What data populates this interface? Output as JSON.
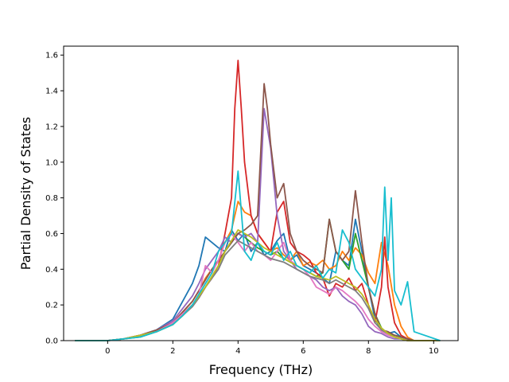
{
  "chart_data": {
    "type": "line",
    "title": "",
    "xlabel": "Frequency (THz)",
    "ylabel": "Partial Density of States",
    "xlim": [
      -1.35,
      10.75
    ],
    "ylim": [
      0.0,
      1.65
    ],
    "xticks": [
      0,
      2,
      4,
      6,
      8,
      10
    ],
    "yticks": [
      0.0,
      0.2,
      0.4,
      0.6,
      0.8,
      1.0,
      1.2,
      1.4,
      1.6
    ],
    "xtick_labels": [
      "0",
      "2",
      "4",
      "6",
      "8",
      "10"
    ],
    "ytick_labels": [
      "0.0",
      "0.2",
      "0.4",
      "0.6",
      "0.8",
      "1.0",
      "1.2",
      "1.4",
      "1.6"
    ],
    "grid": false,
    "legend": "none",
    "series": [
      {
        "color": "#1f77b4",
        "x": [
          -1.0,
          0.0,
          0.5,
          1.0,
          1.5,
          2.0,
          2.3,
          2.6,
          2.8,
          3.0,
          3.2,
          3.4,
          3.6,
          3.8,
          4.0,
          4.2,
          4.4,
          4.6,
          4.8,
          5.0,
          5.2,
          5.4,
          5.6,
          5.8,
          6.0,
          6.2,
          6.4,
          6.6,
          6.8,
          7.0,
          7.2,
          7.4,
          7.6,
          7.8,
          8.0,
          8.2,
          8.4,
          8.6,
          8.8,
          9.0,
          9.2,
          9.4,
          10.2
        ],
        "y": [
          0.0,
          0.0,
          0.01,
          0.03,
          0.06,
          0.12,
          0.22,
          0.32,
          0.42,
          0.58,
          0.55,
          0.52,
          0.5,
          0.62,
          0.56,
          0.6,
          0.5,
          0.55,
          0.48,
          0.5,
          0.56,
          0.6,
          0.45,
          0.48,
          0.42,
          0.4,
          0.38,
          0.35,
          0.32,
          0.5,
          0.45,
          0.42,
          0.68,
          0.5,
          0.3,
          0.12,
          0.06,
          0.04,
          0.05,
          0.02,
          0.01,
          0.0,
          0.0
        ]
      },
      {
        "color": "#ff7f0e",
        "x": [
          -1.0,
          0.0,
          0.5,
          1.0,
          1.5,
          2.0,
          2.3,
          2.6,
          2.8,
          3.0,
          3.2,
          3.4,
          3.6,
          3.8,
          4.0,
          4.2,
          4.4,
          4.6,
          4.8,
          5.0,
          5.2,
          5.4,
          5.6,
          5.8,
          6.0,
          6.2,
          6.4,
          6.6,
          6.8,
          7.0,
          7.2,
          7.4,
          7.6,
          7.8,
          8.0,
          8.2,
          8.4,
          8.6,
          8.8,
          9.0,
          9.2,
          9.4,
          10.2
        ],
        "y": [
          0.0,
          0.0,
          0.01,
          0.03,
          0.05,
          0.1,
          0.16,
          0.22,
          0.28,
          0.35,
          0.4,
          0.45,
          0.55,
          0.62,
          0.78,
          0.72,
          0.7,
          0.6,
          0.55,
          0.5,
          0.52,
          0.48,
          0.45,
          0.5,
          0.42,
          0.44,
          0.42,
          0.45,
          0.4,
          0.42,
          0.5,
          0.45,
          0.52,
          0.48,
          0.38,
          0.32,
          0.55,
          0.42,
          0.2,
          0.08,
          0.02,
          0.0,
          0.0
        ]
      },
      {
        "color": "#2ca02c",
        "x": [
          -1.0,
          0.0,
          0.5,
          1.0,
          1.5,
          2.0,
          2.3,
          2.6,
          2.8,
          3.0,
          3.2,
          3.4,
          3.6,
          3.8,
          4.0,
          4.2,
          4.4,
          4.6,
          4.8,
          5.0,
          5.2,
          5.4,
          5.6,
          5.8,
          6.0,
          6.2,
          6.4,
          6.6,
          6.8,
          7.0,
          7.2,
          7.4,
          7.6,
          7.8,
          8.0,
          8.2,
          8.4,
          8.6,
          8.8,
          9.0,
          9.2,
          9.4,
          10.2
        ],
        "y": [
          0.0,
          0.0,
          0.01,
          0.02,
          0.05,
          0.09,
          0.14,
          0.2,
          0.25,
          0.3,
          0.36,
          0.42,
          0.5,
          0.55,
          0.6,
          0.58,
          0.55,
          0.52,
          0.5,
          0.48,
          0.5,
          0.46,
          0.44,
          0.42,
          0.4,
          0.38,
          0.36,
          0.38,
          0.68,
          0.5,
          0.45,
          0.4,
          0.6,
          0.45,
          0.3,
          0.15,
          0.07,
          0.04,
          0.03,
          0.02,
          0.01,
          0.0,
          0.0
        ]
      },
      {
        "color": "#d62728",
        "x": [
          -1.0,
          0.0,
          0.5,
          1.0,
          1.5,
          2.0,
          2.3,
          2.6,
          2.8,
          3.0,
          3.2,
          3.4,
          3.6,
          3.8,
          3.9,
          4.0,
          4.1,
          4.2,
          4.4,
          4.6,
          4.8,
          5.0,
          5.2,
          5.4,
          5.6,
          5.8,
          6.0,
          6.2,
          6.4,
          6.6,
          6.8,
          7.0,
          7.2,
          7.4,
          7.6,
          7.8,
          8.0,
          8.2,
          8.4,
          8.5,
          8.6,
          8.8,
          9.0,
          9.2,
          9.4,
          10.2
        ],
        "y": [
          0.0,
          0.0,
          0.01,
          0.03,
          0.05,
          0.1,
          0.15,
          0.2,
          0.24,
          0.3,
          0.35,
          0.42,
          0.6,
          0.8,
          1.3,
          1.57,
          1.3,
          1.0,
          0.7,
          0.6,
          0.55,
          0.5,
          0.72,
          0.78,
          0.55,
          0.5,
          0.48,
          0.45,
          0.38,
          0.35,
          0.25,
          0.32,
          0.3,
          0.35,
          0.28,
          0.32,
          0.2,
          0.1,
          0.3,
          0.58,
          0.3,
          0.1,
          0.03,
          0.01,
          0.0,
          0.0
        ]
      },
      {
        "color": "#9467bd",
        "x": [
          -1.0,
          0.0,
          0.5,
          1.0,
          1.5,
          2.0,
          2.3,
          2.6,
          2.8,
          3.0,
          3.2,
          3.4,
          3.6,
          3.8,
          4.0,
          4.2,
          4.4,
          4.6,
          4.8,
          5.0,
          5.2,
          5.4,
          5.6,
          5.8,
          6.0,
          6.2,
          6.4,
          6.6,
          6.8,
          7.0,
          7.2,
          7.4,
          7.6,
          7.8,
          8.0,
          8.2,
          8.4,
          8.6,
          8.8,
          9.0,
          9.2,
          9.4,
          10.2
        ],
        "y": [
          0.0,
          0.0,
          0.01,
          0.03,
          0.06,
          0.11,
          0.18,
          0.25,
          0.32,
          0.4,
          0.45,
          0.5,
          0.58,
          0.55,
          0.6,
          0.58,
          0.6,
          0.55,
          1.3,
          1.08,
          0.7,
          0.5,
          0.45,
          0.4,
          0.38,
          0.36,
          0.34,
          0.3,
          0.28,
          0.3,
          0.25,
          0.22,
          0.2,
          0.15,
          0.08,
          0.05,
          0.04,
          0.02,
          0.01,
          0.01,
          0.0,
          0.0,
          0.0
        ]
      },
      {
        "color": "#8c564b",
        "x": [
          -1.0,
          0.0,
          0.5,
          1.0,
          1.5,
          2.0,
          2.3,
          2.6,
          2.8,
          3.0,
          3.2,
          3.4,
          3.6,
          3.8,
          4.0,
          4.2,
          4.4,
          4.6,
          4.8,
          4.9,
          5.0,
          5.1,
          5.2,
          5.4,
          5.6,
          5.8,
          6.0,
          6.2,
          6.4,
          6.6,
          6.8,
          7.0,
          7.2,
          7.4,
          7.6,
          7.8,
          8.0,
          8.2,
          8.4,
          8.6,
          8.8,
          9.0,
          9.2,
          9.4,
          10.2
        ],
        "y": [
          0.0,
          0.0,
          0.01,
          0.03,
          0.06,
          0.1,
          0.16,
          0.22,
          0.28,
          0.34,
          0.4,
          0.45,
          0.5,
          0.55,
          0.6,
          0.62,
          0.65,
          0.7,
          1.44,
          1.3,
          1.1,
          0.95,
          0.8,
          0.88,
          0.6,
          0.5,
          0.45,
          0.42,
          0.4,
          0.38,
          0.68,
          0.5,
          0.45,
          0.5,
          0.84,
          0.55,
          0.3,
          0.15,
          0.06,
          0.05,
          0.03,
          0.02,
          0.01,
          0.0,
          0.0
        ]
      },
      {
        "color": "#e377c2",
        "x": [
          -1.0,
          0.0,
          0.5,
          1.0,
          1.5,
          2.0,
          2.3,
          2.6,
          2.8,
          3.0,
          3.2,
          3.4,
          3.6,
          3.8,
          4.0,
          4.2,
          4.4,
          4.6,
          4.8,
          5.0,
          5.2,
          5.4,
          5.6,
          5.8,
          6.0,
          6.2,
          6.4,
          6.6,
          6.8,
          7.0,
          7.2,
          7.4,
          7.6,
          7.8,
          8.0,
          8.2,
          8.4,
          8.6,
          8.8,
          9.0,
          9.2,
          9.4,
          10.2
        ],
        "y": [
          0.0,
          0.0,
          0.01,
          0.03,
          0.05,
          0.1,
          0.15,
          0.2,
          0.26,
          0.42,
          0.38,
          0.45,
          0.55,
          0.6,
          0.55,
          0.5,
          0.55,
          0.5,
          0.48,
          0.45,
          0.5,
          0.55,
          0.45,
          0.42,
          0.4,
          0.36,
          0.3,
          0.28,
          0.26,
          0.3,
          0.28,
          0.25,
          0.22,
          0.18,
          0.12,
          0.08,
          0.05,
          0.03,
          0.02,
          0.01,
          0.0,
          0.0,
          0.0
        ]
      },
      {
        "color": "#7f7f7f",
        "x": [
          -1.0,
          0.0,
          0.5,
          1.0,
          1.5,
          2.0,
          2.3,
          2.6,
          2.8,
          3.0,
          3.2,
          3.4,
          3.6,
          3.8,
          4.0,
          4.2,
          4.4,
          4.6,
          4.8,
          5.0,
          5.2,
          5.4,
          5.6,
          5.8,
          6.0,
          6.2,
          6.4,
          6.6,
          6.8,
          7.0,
          7.2,
          7.4,
          7.6,
          7.8,
          8.0,
          8.2,
          8.4,
          8.6,
          8.8,
          9.0,
          9.2,
          9.4,
          10.2
        ],
        "y": [
          0.0,
          0.0,
          0.01,
          0.03,
          0.05,
          0.09,
          0.14,
          0.19,
          0.24,
          0.3,
          0.35,
          0.4,
          0.48,
          0.52,
          0.56,
          0.54,
          0.52,
          0.5,
          0.48,
          0.46,
          0.45,
          0.44,
          0.42,
          0.4,
          0.38,
          0.36,
          0.35,
          0.34,
          0.32,
          0.34,
          0.32,
          0.3,
          0.28,
          0.24,
          0.18,
          0.1,
          0.06,
          0.04,
          0.02,
          0.01,
          0.0,
          0.0,
          0.0
        ]
      },
      {
        "color": "#bcbd22",
        "x": [
          -1.0,
          0.0,
          0.5,
          1.0,
          1.5,
          2.0,
          2.3,
          2.6,
          2.8,
          3.0,
          3.2,
          3.4,
          3.6,
          3.8,
          4.0,
          4.2,
          4.4,
          4.6,
          4.8,
          5.0,
          5.2,
          5.4,
          5.6,
          5.8,
          6.0,
          6.2,
          6.4,
          6.6,
          6.8,
          7.0,
          7.2,
          7.4,
          7.6,
          7.8,
          8.0,
          8.2,
          8.4,
          8.6,
          8.8,
          9.0,
          9.2,
          9.4,
          10.2
        ],
        "y": [
          0.0,
          0.0,
          0.01,
          0.03,
          0.05,
          0.09,
          0.14,
          0.2,
          0.25,
          0.3,
          0.36,
          0.42,
          0.5,
          0.56,
          0.62,
          0.6,
          0.58,
          0.55,
          0.52,
          0.5,
          0.48,
          0.46,
          0.44,
          0.42,
          0.4,
          0.38,
          0.36,
          0.35,
          0.34,
          0.36,
          0.34,
          0.32,
          0.3,
          0.26,
          0.2,
          0.12,
          0.07,
          0.04,
          0.02,
          0.01,
          0.0,
          0.0,
          0.0
        ]
      },
      {
        "color": "#17becf",
        "x": [
          -1.0,
          0.0,
          0.5,
          1.0,
          1.5,
          2.0,
          2.3,
          2.6,
          2.8,
          3.0,
          3.2,
          3.4,
          3.6,
          3.8,
          4.0,
          4.2,
          4.4,
          4.6,
          4.8,
          5.0,
          5.2,
          5.4,
          5.6,
          5.8,
          6.0,
          6.2,
          6.4,
          6.6,
          6.8,
          7.0,
          7.2,
          7.4,
          7.6,
          7.8,
          8.0,
          8.2,
          8.4,
          8.5,
          8.6,
          8.7,
          8.8,
          9.0,
          9.2,
          9.4,
          10.2
        ],
        "y": [
          0.0,
          0.0,
          0.01,
          0.02,
          0.05,
          0.09,
          0.14,
          0.2,
          0.26,
          0.32,
          0.38,
          0.5,
          0.55,
          0.6,
          0.95,
          0.5,
          0.45,
          0.55,
          0.5,
          0.48,
          0.55,
          0.45,
          0.5,
          0.42,
          0.4,
          0.38,
          0.42,
          0.35,
          0.4,
          0.38,
          0.62,
          0.55,
          0.4,
          0.35,
          0.3,
          0.25,
          0.4,
          0.86,
          0.45,
          0.8,
          0.28,
          0.2,
          0.33,
          0.05,
          0.0
        ]
      }
    ]
  }
}
